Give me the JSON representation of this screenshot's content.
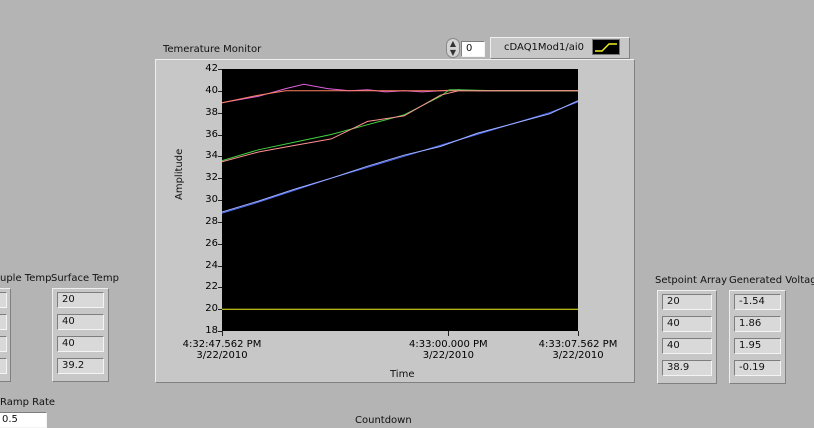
{
  "graph": {
    "title": "Temerature Monitor",
    "ylabel": "Amplitude",
    "xlabel": "Time",
    "plot_index": "0",
    "channel": "cDAQ1Mod1/ai0"
  },
  "tables": {
    "thermocouple_header": "uple Temp",
    "surface_header": "Surface Temp",
    "surface_values": [
      "20",
      "40",
      "40",
      "39.2"
    ],
    "setpoint_header": "Setpoint Array",
    "setpoint_values": [
      "20",
      "40",
      "40",
      "38.9"
    ],
    "voltage_header": "Generated Voltage",
    "voltage_values": [
      "-1.54",
      "1.86",
      "1.95",
      "-0.19"
    ]
  },
  "ramp": {
    "label": "Ramp Rate",
    "value": "0.5"
  },
  "countdown": {
    "label": "Countdown"
  },
  "chart_data": {
    "type": "line",
    "title": "Temerature Monitor",
    "xlabel": "Time",
    "ylabel": "Amplitude",
    "ylim": [
      18,
      42
    ],
    "yticks": [
      "42",
      "40",
      "38",
      "36",
      "34",
      "32",
      "30",
      "28",
      "26",
      "24",
      "22",
      "20",
      "18"
    ],
    "xlim": [
      0,
      19.562
    ],
    "xticks": [
      {
        "x": 0,
        "time": "4:32:47.562 PM",
        "date": "3/22/2010"
      },
      {
        "x": 12.438,
        "time": "4:33:00.000 PM",
        "date": "3/22/2010"
      },
      {
        "x": 19.562,
        "time": "4:33:07.562 PM",
        "date": "3/22/2010"
      }
    ],
    "grid": false,
    "background": "#000000",
    "series": [
      {
        "color": "#e060e0",
        "x": [
          0,
          2,
          3.5,
          4.5,
          5.8,
          7,
          8,
          9,
          10,
          11,
          12,
          13,
          14,
          15,
          16,
          17,
          18,
          19.562
        ],
        "y": [
          38.9,
          39.5,
          40.2,
          40.6,
          40.2,
          40.0,
          40.1,
          39.9,
          40.0,
          39.9,
          40.0,
          40.1,
          40.0,
          40.0,
          40.0,
          40.0,
          40.0,
          40.0
        ]
      },
      {
        "color": "#ff8060",
        "x": [
          0,
          2,
          3.5,
          5,
          7,
          9,
          11,
          12.3,
          13,
          15,
          17,
          19.562
        ],
        "y": [
          38.9,
          39.6,
          40.0,
          40.0,
          40.0,
          40.0,
          40.0,
          40.0,
          40.0,
          40.0,
          40.0,
          40.0
        ]
      },
      {
        "color": "#40d040",
        "x": [
          0,
          2,
          4,
          6,
          8,
          10,
          12,
          12.5,
          13,
          15,
          17,
          19.562
        ],
        "y": [
          33.6,
          34.6,
          35.3,
          36.0,
          36.9,
          37.8,
          39.5,
          40.1,
          40.1,
          40.0,
          40.0,
          40.0
        ]
      },
      {
        "color": "#ff9090",
        "x": [
          0,
          2,
          4,
          6,
          8,
          10,
          12,
          13,
          15,
          17,
          19.562
        ],
        "y": [
          33.5,
          34.4,
          35.0,
          35.6,
          37.2,
          37.7,
          39.6,
          40.0,
          40.0,
          40.0,
          40.0
        ]
      },
      {
        "color": "#5070ff",
        "x": [
          0,
          2,
          4,
          6,
          8,
          10,
          12,
          14,
          16,
          18,
          19.562
        ],
        "y": [
          28.8,
          29.8,
          30.9,
          32.0,
          33.0,
          34.0,
          35.0,
          36.0,
          37.0,
          38.0,
          39.0
        ]
      },
      {
        "color": "#a0b0ff",
        "x": [
          0,
          2,
          4,
          6,
          8,
          10,
          12,
          14,
          16,
          18,
          19.562
        ],
        "y": [
          28.9,
          29.9,
          31.0,
          32.0,
          33.1,
          34.1,
          34.9,
          36.1,
          37.0,
          37.9,
          39.1
        ]
      },
      {
        "color": "#f0f020",
        "x": [
          0,
          5,
          10,
          15,
          19.562
        ],
        "y": [
          20,
          20,
          20,
          20,
          20
        ]
      }
    ]
  }
}
